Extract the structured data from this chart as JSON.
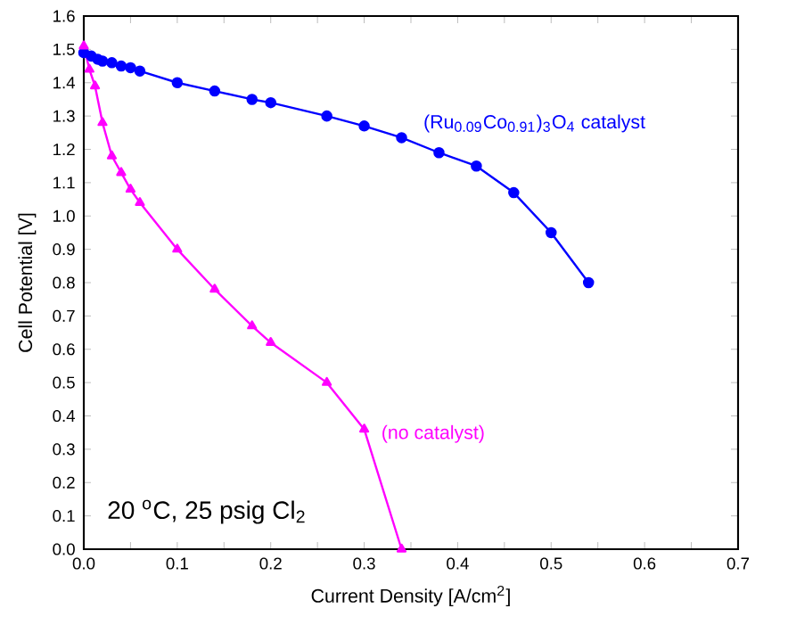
{
  "chart_data": {
    "type": "line",
    "xlabel": "Current Density [A/cm$^{2}$]",
    "ylabel": "Cell Potential [V]",
    "annotations": [
      "20 $^{o}$C, 25 psig Cl$_{2}$"
    ],
    "xlim": [
      0,
      0.7
    ],
    "ylim": [
      0,
      1.6
    ],
    "line_style": "solid",
    "xticks": [
      {
        "value": 0,
        "label": "0.0"
      },
      {
        "value": 0.05,
        "label": null
      },
      {
        "value": 0.1,
        "label": "0.1"
      },
      {
        "value": 0.15,
        "label": null
      },
      {
        "value": 0.2,
        "label": "0.2"
      },
      {
        "value": 0.25,
        "label": null
      },
      {
        "value": 0.3,
        "label": "0.3"
      },
      {
        "value": 0.35,
        "label": null
      },
      {
        "value": 0.4,
        "label": "0.4"
      },
      {
        "value": 0.45,
        "label": null
      },
      {
        "value": 0.5,
        "label": "0.5"
      },
      {
        "value": 0.55,
        "label": null
      },
      {
        "value": 0.6,
        "label": "0.6"
      },
      {
        "value": 0.65,
        "label": null
      },
      {
        "value": 0.7,
        "label": "0.7"
      }
    ],
    "yticks": [
      {
        "value": 0,
        "label": "0.0"
      },
      {
        "value": 0.1,
        "label": "0.1"
      },
      {
        "value": 0.2,
        "label": "0.2"
      },
      {
        "value": 0.3,
        "label": "0.3"
      },
      {
        "value": 0.4,
        "label": "0.4"
      },
      {
        "value": 0.5,
        "label": "0.5"
      },
      {
        "value": 0.6,
        "label": "0.6"
      },
      {
        "value": 0.7,
        "label": "0.7"
      },
      {
        "value": 0.8,
        "label": "0.8"
      },
      {
        "value": 0.9,
        "label": "0.9"
      },
      {
        "value": 1.0,
        "label": "1.0"
      },
      {
        "value": 1.1,
        "label": "1.1"
      },
      {
        "value": 1.2,
        "label": "1.2"
      },
      {
        "value": 1.3,
        "label": "1.3"
      },
      {
        "value": 1.4,
        "label": "1.4"
      },
      {
        "value": 1.5,
        "label": "1.5"
      },
      {
        "value": 1.6,
        "label": "1.6"
      }
    ],
    "series": [
      {
        "name": "(Ru$_{0.09}$Co$_{0.91}$)$_{3}$O$_{4}$ catalyst",
        "color": "#0000ff",
        "marker": "circle",
        "x": [
          0,
          0.008,
          0.015,
          0.02,
          0.03,
          0.04,
          0.05,
          0.06,
          0.1,
          0.14,
          0.18,
          0.2,
          0.26,
          0.3,
          0.34,
          0.38,
          0.42,
          0.46,
          0.5,
          0.54
        ],
        "values": [
          1.49,
          1.48,
          1.47,
          1.465,
          1.46,
          1.45,
          1.445,
          1.435,
          1.4,
          1.375,
          1.35,
          1.34,
          1.3,
          1.27,
          1.235,
          1.19,
          1.15,
          1.07,
          0.95,
          0.8
        ]
      },
      {
        "name": "(no catalyst)",
        "color": "#ff00ff",
        "marker": "triangle",
        "x": [
          0,
          0.006,
          0.012,
          0.02,
          0.03,
          0.04,
          0.05,
          0.06,
          0.1,
          0.14,
          0.18,
          0.2,
          0.26,
          0.3,
          0.34
        ],
        "values": [
          1.51,
          1.44,
          1.39,
          1.28,
          1.18,
          1.13,
          1.08,
          1.04,
          0.9,
          0.78,
          0.67,
          0.62,
          0.5,
          0.36,
          0
        ]
      }
    ]
  }
}
